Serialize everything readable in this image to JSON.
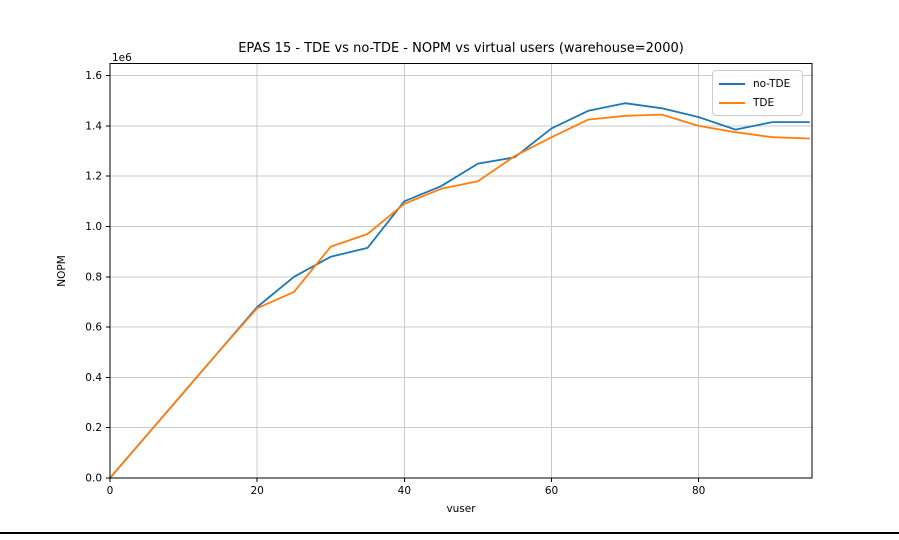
{
  "window": {
    "background": "#ffffff",
    "bottom_border_color": "#000000"
  },
  "chart_data": {
    "type": "line",
    "title": "EPAS 15 - TDE vs no-TDE - NOPM vs virtual users (warehouse=2000)",
    "xlabel": "vuser",
    "ylabel": "NOPM",
    "y_offset_label": "1e6",
    "grid": true,
    "legend_position": "upper right",
    "xlim": [
      0,
      95.4
    ],
    "ylim": [
      0,
      1648000
    ],
    "x_ticks": [
      {
        "value": 0,
        "label": "0"
      },
      {
        "value": 20,
        "label": "20"
      },
      {
        "value": 40,
        "label": "40"
      },
      {
        "value": 60,
        "label": "60"
      },
      {
        "value": 80,
        "label": "80"
      }
    ],
    "y_ticks": [
      {
        "value": 0,
        "label": "0.0"
      },
      {
        "value": 200000,
        "label": "0.2"
      },
      {
        "value": 400000,
        "label": "0.4"
      },
      {
        "value": 600000,
        "label": "0.6"
      },
      {
        "value": 800000,
        "label": "0.8"
      },
      {
        "value": 1000000,
        "label": "1.0"
      },
      {
        "value": 1200000,
        "label": "1.2"
      },
      {
        "value": 1400000,
        "label": "1.4"
      },
      {
        "value": 1600000,
        "label": "1.6"
      }
    ],
    "x": [
      0,
      5,
      10,
      15,
      20,
      25,
      30,
      35,
      40,
      45,
      50,
      55,
      60,
      65,
      70,
      75,
      80,
      85,
      90,
      95
    ],
    "series": [
      {
        "name": "no-TDE",
        "color": "#1f77b4",
        "values": [
          0,
          170000,
          340000,
          510000,
          680000,
          800000,
          880000,
          915000,
          1100000,
          1160000,
          1250000,
          1275000,
          1390000,
          1460000,
          1490000,
          1470000,
          1435000,
          1385000,
          1415000,
          1415000
        ]
      },
      {
        "name": "TDE",
        "color": "#ff7f0e",
        "values": [
          0,
          170000,
          340000,
          510000,
          675000,
          740000,
          920000,
          970000,
          1090000,
          1150000,
          1180000,
          1280000,
          1355000,
          1425000,
          1440000,
          1445000,
          1400000,
          1375000,
          1355000,
          1350000
        ]
      }
    ],
    "grid_color": "#c9c9c9",
    "axis_color": "#000000",
    "tick_label_color": "#000000"
  }
}
